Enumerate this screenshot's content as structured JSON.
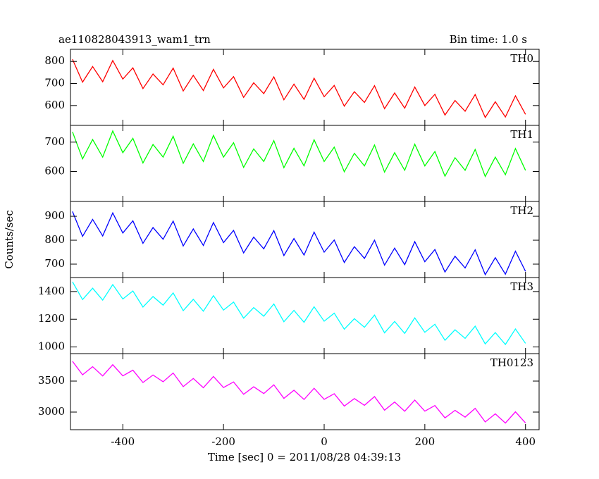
{
  "chart_data": {
    "type": "line",
    "title": "ae110828043913_wam1_trn",
    "subtitle": "Bin time: 1.0 s",
    "y_label": "Counts/sec",
    "x_label": "Time [sec] 0 = 2011/08/28 04:39:13",
    "xlim": [
      -504,
      427
    ],
    "xticks": [
      -400,
      -200,
      0,
      200,
      400
    ],
    "x": [
      -500,
      -480,
      -460,
      -440,
      -420,
      -400,
      -380,
      -360,
      -340,
      -320,
      -300,
      -280,
      -260,
      -240,
      -220,
      -200,
      -180,
      -160,
      -140,
      -120,
      -100,
      -80,
      -60,
      -40,
      -20,
      0,
      20,
      40,
      60,
      80,
      100,
      120,
      140,
      160,
      180,
      200,
      220,
      240,
      260,
      280,
      300,
      320,
      340,
      360,
      380,
      400
    ],
    "series": [
      {
        "name": "TH0",
        "color": "#ff0000",
        "ylim": [
          510,
          855
        ],
        "yticks": [
          600,
          700,
          800
        ],
        "values": [
          810,
          706,
          777,
          708,
          804,
          720,
          771,
          677,
          743,
          694,
          770,
          666,
          737,
          668,
          764,
          680,
          731,
          637,
          703,
          654,
          730,
          626,
          697,
          628,
          724,
          640,
          691,
          597,
          663,
          614,
          690,
          586,
          657,
          588,
          684,
          600,
          651,
          557,
          623,
          574,
          650,
          546,
          617,
          548,
          644,
          560
        ]
      },
      {
        "name": "TH1",
        "color": "#00ff00",
        "ylim": [
          498,
          757
        ],
        "yticks": [
          600,
          700
        ],
        "values": [
          735,
          643,
          709,
          649,
          738,
          664,
          713,
          629,
          692,
          649,
          720,
          628,
          694,
          634,
          723,
          649,
          698,
          614,
          677,
          634,
          705,
          613,
          679,
          619,
          708,
          634,
          683,
          599,
          662,
          619,
          690,
          598,
          664,
          604,
          693,
          619,
          668,
          584,
          647,
          604,
          675,
          583,
          649,
          589,
          678,
          604
        ]
      },
      {
        "name": "TH2",
        "color": "#0000ff",
        "ylim": [
          644,
          962
        ],
        "yticks": [
          700,
          800,
          900
        ],
        "values": [
          920,
          816,
          887,
          818,
          914,
          830,
          881,
          787,
          853,
          804,
          880,
          776,
          847,
          778,
          874,
          790,
          841,
          747,
          813,
          764,
          840,
          736,
          807,
          738,
          834,
          750,
          801,
          707,
          773,
          724,
          800,
          696,
          767,
          698,
          794,
          710,
          761,
          667,
          733,
          684,
          760,
          656,
          727,
          658,
          754,
          670
        ]
      },
      {
        "name": "TH3",
        "color": "#00ffff",
        "ylim": [
          952,
          1501
        ],
        "yticks": [
          1000,
          1200,
          1400
        ],
        "values": [
          1470,
          1342,
          1424,
          1338,
          1450,
          1346,
          1404,
          1288,
          1364,
          1302,
          1390,
          1262,
          1344,
          1258,
          1370,
          1266,
          1324,
          1208,
          1284,
          1222,
          1310,
          1182,
          1264,
          1178,
          1290,
          1186,
          1244,
          1128,
          1204,
          1142,
          1230,
          1102,
          1184,
          1098,
          1210,
          1106,
          1164,
          1048,
          1124,
          1062,
          1150,
          1022,
          1104,
          1018,
          1130,
          1026
        ]
      },
      {
        "name": "TH0123",
        "color": "#ff00ff",
        "ylim": [
          2716,
          3943
        ],
        "yticks": [
          3000,
          3500
        ],
        "values": [
          3820,
          3601,
          3732,
          3583,
          3764,
          3585,
          3676,
          3477,
          3598,
          3489,
          3630,
          3411,
          3542,
          3393,
          3574,
          3395,
          3486,
          3287,
          3408,
          3299,
          3440,
          3221,
          3352,
          3203,
          3384,
          3205,
          3296,
          3097,
          3218,
          3109,
          3250,
          3031,
          3162,
          3013,
          3194,
          3015,
          3106,
          2907,
          3028,
          2919,
          3060,
          2841,
          2972,
          2823,
          3004,
          2825
        ]
      }
    ]
  }
}
